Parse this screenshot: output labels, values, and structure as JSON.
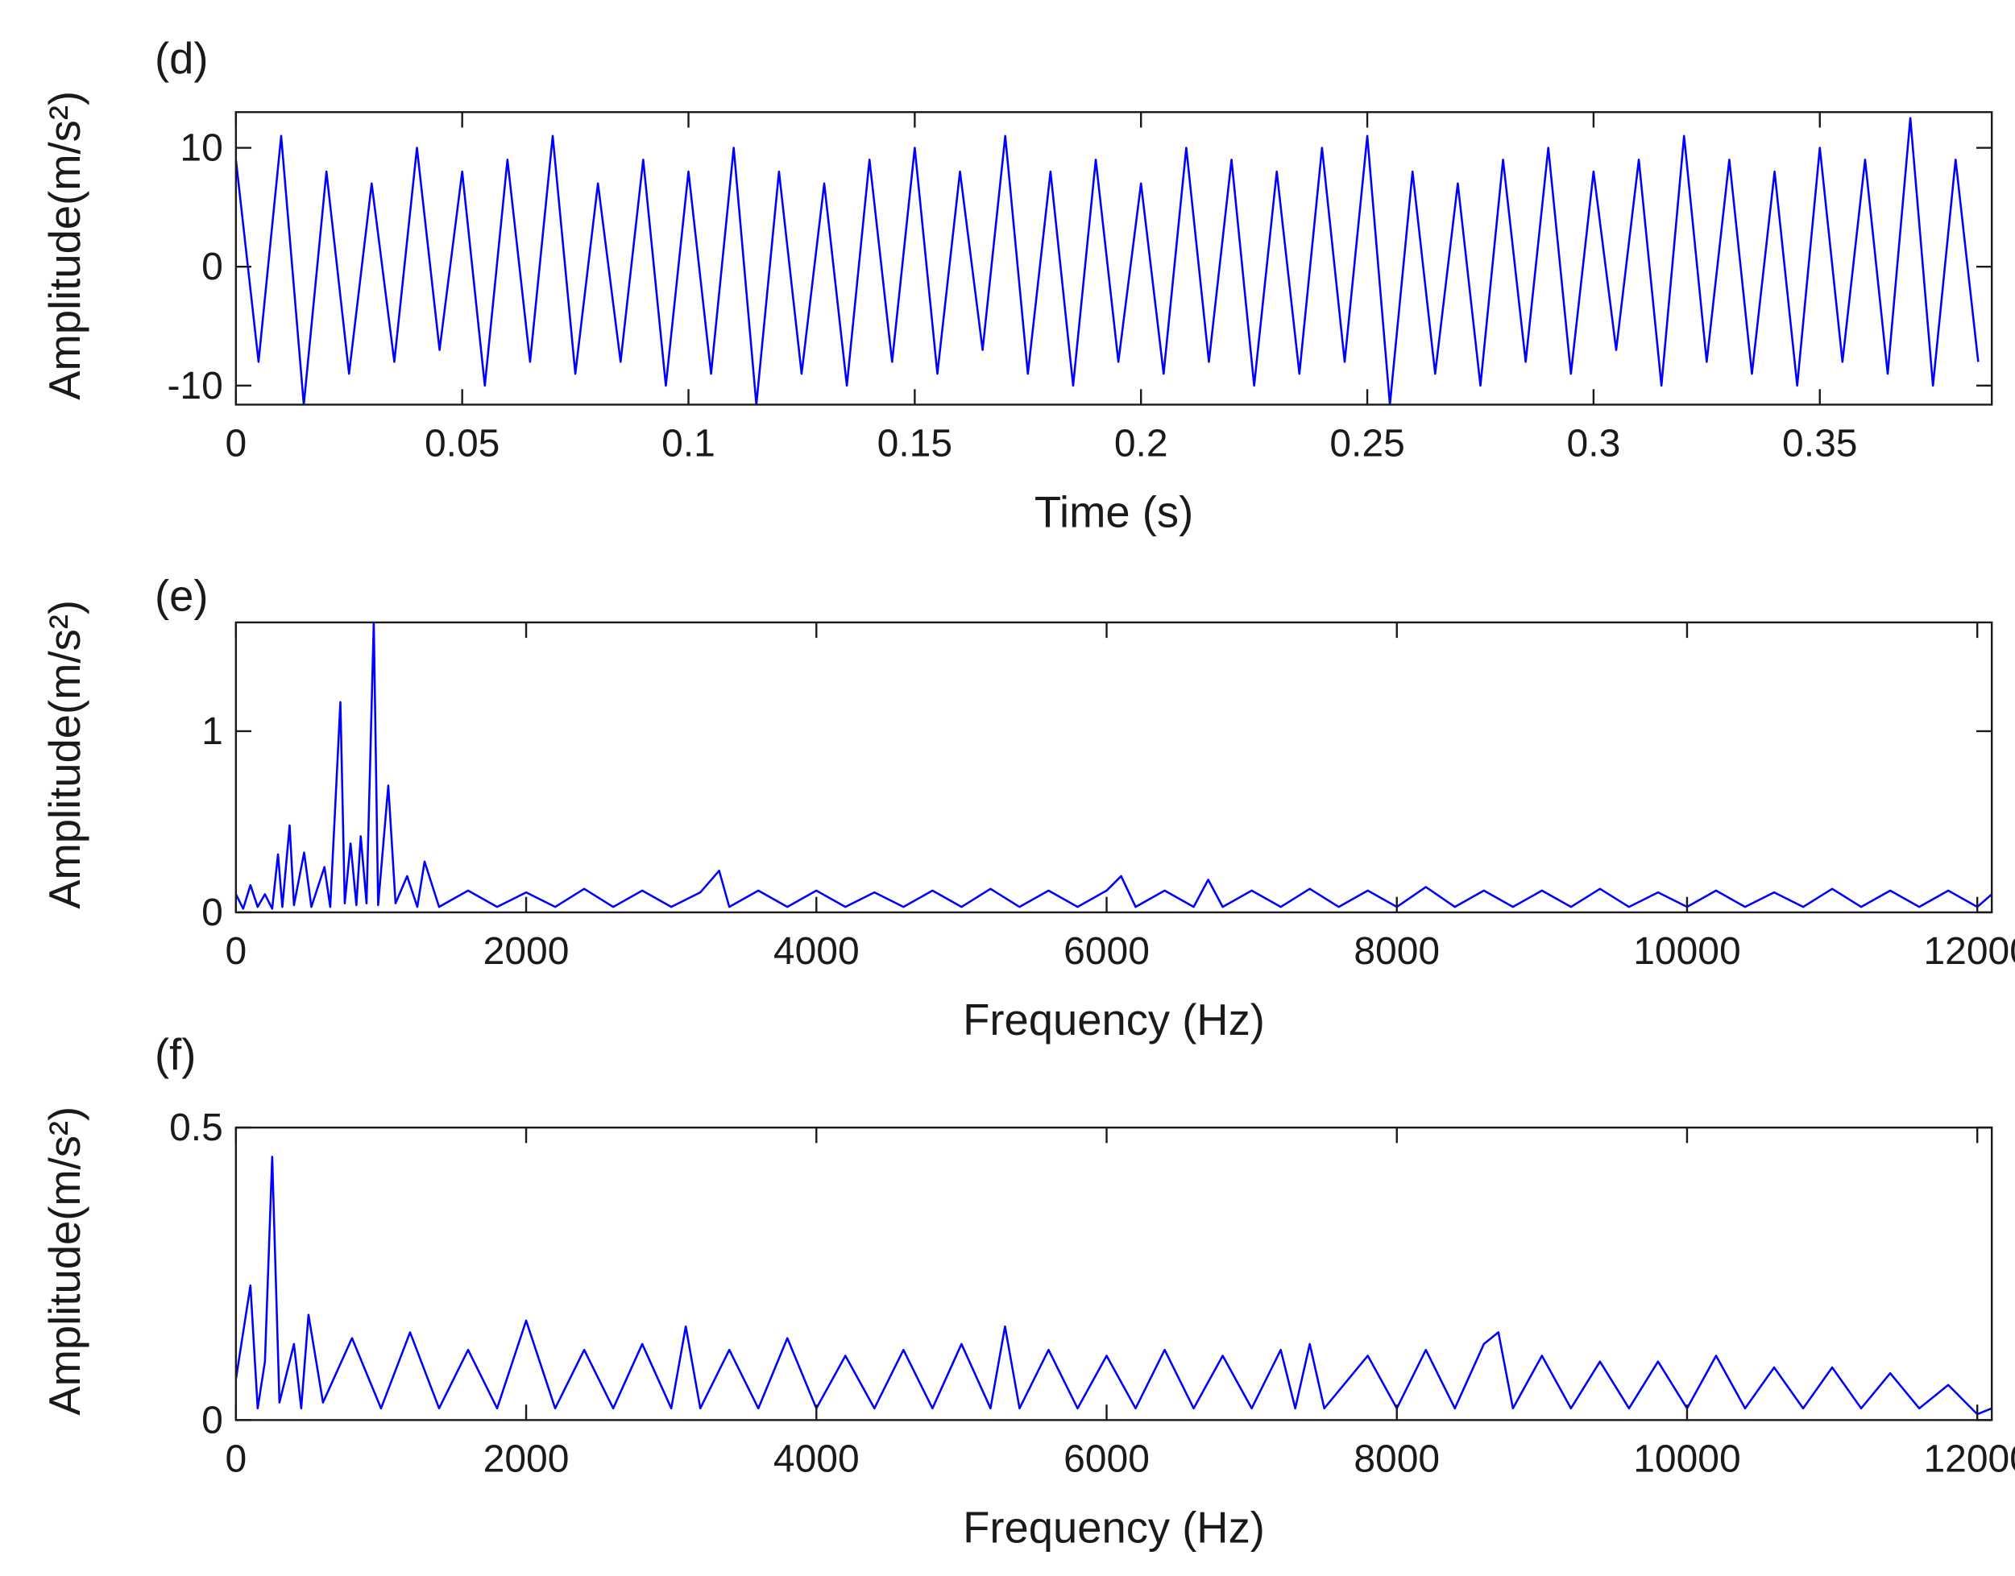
{
  "chart_data": [
    {
      "type": "line",
      "title": "(d)",
      "xlabel": "Time (s)",
      "ylabel": "Amplitude(m/s²)",
      "xlim": [
        0,
        0.388
      ],
      "ylim": [
        -11.6,
        13
      ],
      "xticks": [
        0,
        0.05,
        0.1,
        0.15,
        0.2,
        0.25,
        0.3,
        0.35
      ],
      "yticks": [
        -10,
        0,
        10
      ],
      "x": [
        0,
        0.005,
        0.01,
        0.015,
        0.02,
        0.025,
        0.03,
        0.035,
        0.04,
        0.045,
        0.05,
        0.055,
        0.06,
        0.065,
        0.07,
        0.075,
        0.08,
        0.085,
        0.09,
        0.095,
        0.1,
        0.105,
        0.11,
        0.115,
        0.12,
        0.125,
        0.13,
        0.135,
        0.14,
        0.145,
        0.15,
        0.155,
        0.16,
        0.165,
        0.17,
        0.175,
        0.18,
        0.185,
        0.19,
        0.195,
        0.2,
        0.205,
        0.21,
        0.215,
        0.22,
        0.225,
        0.23,
        0.235,
        0.24,
        0.245,
        0.25,
        0.255,
        0.26,
        0.265,
        0.27,
        0.275,
        0.28,
        0.285,
        0.29,
        0.295,
        0.3,
        0.305,
        0.31,
        0.315,
        0.32,
        0.325,
        0.33,
        0.335,
        0.34,
        0.345,
        0.35,
        0.355,
        0.36,
        0.365,
        0.37,
        0.375,
        0.38,
        0.385
      ],
      "series": [
        {
          "color": "#0000ff",
          "values": [
            9,
            -8,
            11,
            -11.6,
            8,
            -9,
            7,
            -8,
            10,
            -7,
            8,
            -10,
            9,
            -8,
            11,
            -9,
            7,
            -8,
            9,
            -10,
            8,
            -9,
            10,
            -11.6,
            8,
            -9,
            7,
            -10,
            9,
            -8,
            10,
            -9,
            8,
            -7,
            11,
            -9,
            8,
            -10,
            9,
            -8,
            7,
            -9,
            10,
            -8,
            9,
            -10,
            8,
            -9,
            10,
            -8,
            11,
            -11.6,
            8,
            -9,
            7,
            -10,
            9,
            -8,
            10,
            -9,
            8,
            -7,
            9,
            -10,
            11,
            -8,
            9,
            -9,
            8,
            -10,
            10,
            -8,
            9,
            -9,
            12.5,
            -10,
            9,
            -8
          ]
        }
      ]
    },
    {
      "type": "line",
      "title": "(e)",
      "xlabel": "Frequency (Hz)",
      "ylabel": "Amplitude(m/s²)",
      "xlim": [
        0,
        12100
      ],
      "ylim": [
        0,
        1.6
      ],
      "xticks": [
        0,
        2000,
        4000,
        6000,
        8000,
        10000,
        12000
      ],
      "yticks": [
        0,
        1
      ],
      "x": [
        0,
        50,
        100,
        150,
        200,
        250,
        290,
        320,
        370,
        400,
        470,
        520,
        610,
        650,
        720,
        750,
        790,
        830,
        860,
        900,
        950,
        980,
        1050,
        1100,
        1180,
        1250,
        1300,
        1400,
        1600,
        1800,
        2000,
        2200,
        2400,
        2600,
        2800,
        3000,
        3200,
        3330,
        3400,
        3600,
        3800,
        4000,
        4200,
        4400,
        4600,
        4800,
        5000,
        5200,
        5400,
        5600,
        5800,
        6000,
        6100,
        6200,
        6400,
        6600,
        6700,
        6800,
        7000,
        7200,
        7400,
        7600,
        7800,
        8000,
        8200,
        8400,
        8600,
        8800,
        9000,
        9200,
        9400,
        9600,
        9800,
        10000,
        10200,
        10400,
        10600,
        10800,
        11000,
        11200,
        11400,
        11600,
        11800,
        12000,
        12100
      ],
      "series": [
        {
          "color": "#0000ff",
          "values": [
            0.1,
            0.02,
            0.15,
            0.03,
            0.1,
            0.02,
            0.32,
            0.03,
            0.48,
            0.04,
            0.33,
            0.03,
            0.25,
            0.03,
            1.16,
            0.05,
            0.38,
            0.04,
            0.42,
            0.05,
            1.6,
            0.04,
            0.7,
            0.05,
            0.2,
            0.03,
            0.28,
            0.03,
            0.12,
            0.03,
            0.11,
            0.03,
            0.13,
            0.03,
            0.12,
            0.03,
            0.11,
            0.23,
            0.03,
            0.12,
            0.03,
            0.12,
            0.03,
            0.11,
            0.03,
            0.12,
            0.03,
            0.13,
            0.03,
            0.12,
            0.03,
            0.12,
            0.2,
            0.03,
            0.12,
            0.03,
            0.18,
            0.03,
            0.12,
            0.03,
            0.13,
            0.03,
            0.12,
            0.03,
            0.14,
            0.03,
            0.12,
            0.03,
            0.12,
            0.03,
            0.13,
            0.03,
            0.11,
            0.03,
            0.12,
            0.03,
            0.11,
            0.03,
            0.13,
            0.03,
            0.12,
            0.03,
            0.12,
            0.03,
            0.1
          ]
        }
      ]
    },
    {
      "type": "line",
      "title": "(f)",
      "xlabel": "Frequency (Hz)",
      "ylabel": "Amplitude(m/s²)",
      "xlim": [
        0,
        12100
      ],
      "ylim": [
        0,
        0.5
      ],
      "xticks": [
        0,
        2000,
        4000,
        6000,
        8000,
        10000,
        12000
      ],
      "yticks": [
        0,
        0.5
      ],
      "x": [
        0,
        100,
        150,
        200,
        250,
        300,
        400,
        450,
        500,
        600,
        800,
        1000,
        1200,
        1400,
        1600,
        1800,
        2000,
        2200,
        2400,
        2600,
        2800,
        3000,
        3100,
        3200,
        3400,
        3600,
        3800,
        4000,
        4200,
        4400,
        4600,
        4800,
        5000,
        5200,
        5300,
        5400,
        5600,
        5800,
        6000,
        6200,
        6400,
        6600,
        6800,
        7000,
        7200,
        7300,
        7400,
        7500,
        7800,
        8000,
        8200,
        8400,
        8600,
        8700,
        8800,
        9000,
        9200,
        9400,
        9600,
        9800,
        10000,
        10200,
        10400,
        10600,
        10800,
        11000,
        11200,
        11400,
        11600,
        11800,
        12000,
        12100
      ],
      "series": [
        {
          "color": "#0000ff",
          "values": [
            0.07,
            0.23,
            0.02,
            0.1,
            0.45,
            0.03,
            0.13,
            0.02,
            0.18,
            0.03,
            0.14,
            0.02,
            0.15,
            0.02,
            0.12,
            0.02,
            0.17,
            0.02,
            0.12,
            0.02,
            0.13,
            0.02,
            0.16,
            0.02,
            0.12,
            0.02,
            0.14,
            0.02,
            0.11,
            0.02,
            0.12,
            0.02,
            0.13,
            0.02,
            0.16,
            0.02,
            0.12,
            0.02,
            0.11,
            0.02,
            0.12,
            0.02,
            0.11,
            0.02,
            0.12,
            0.02,
            0.13,
            0.02,
            0.11,
            0.02,
            0.12,
            0.02,
            0.13,
            0.15,
            0.02,
            0.11,
            0.02,
            0.1,
            0.02,
            0.1,
            0.02,
            0.11,
            0.02,
            0.09,
            0.02,
            0.09,
            0.02,
            0.08,
            0.02,
            0.06,
            0.01,
            0.02
          ]
        }
      ]
    }
  ]
}
